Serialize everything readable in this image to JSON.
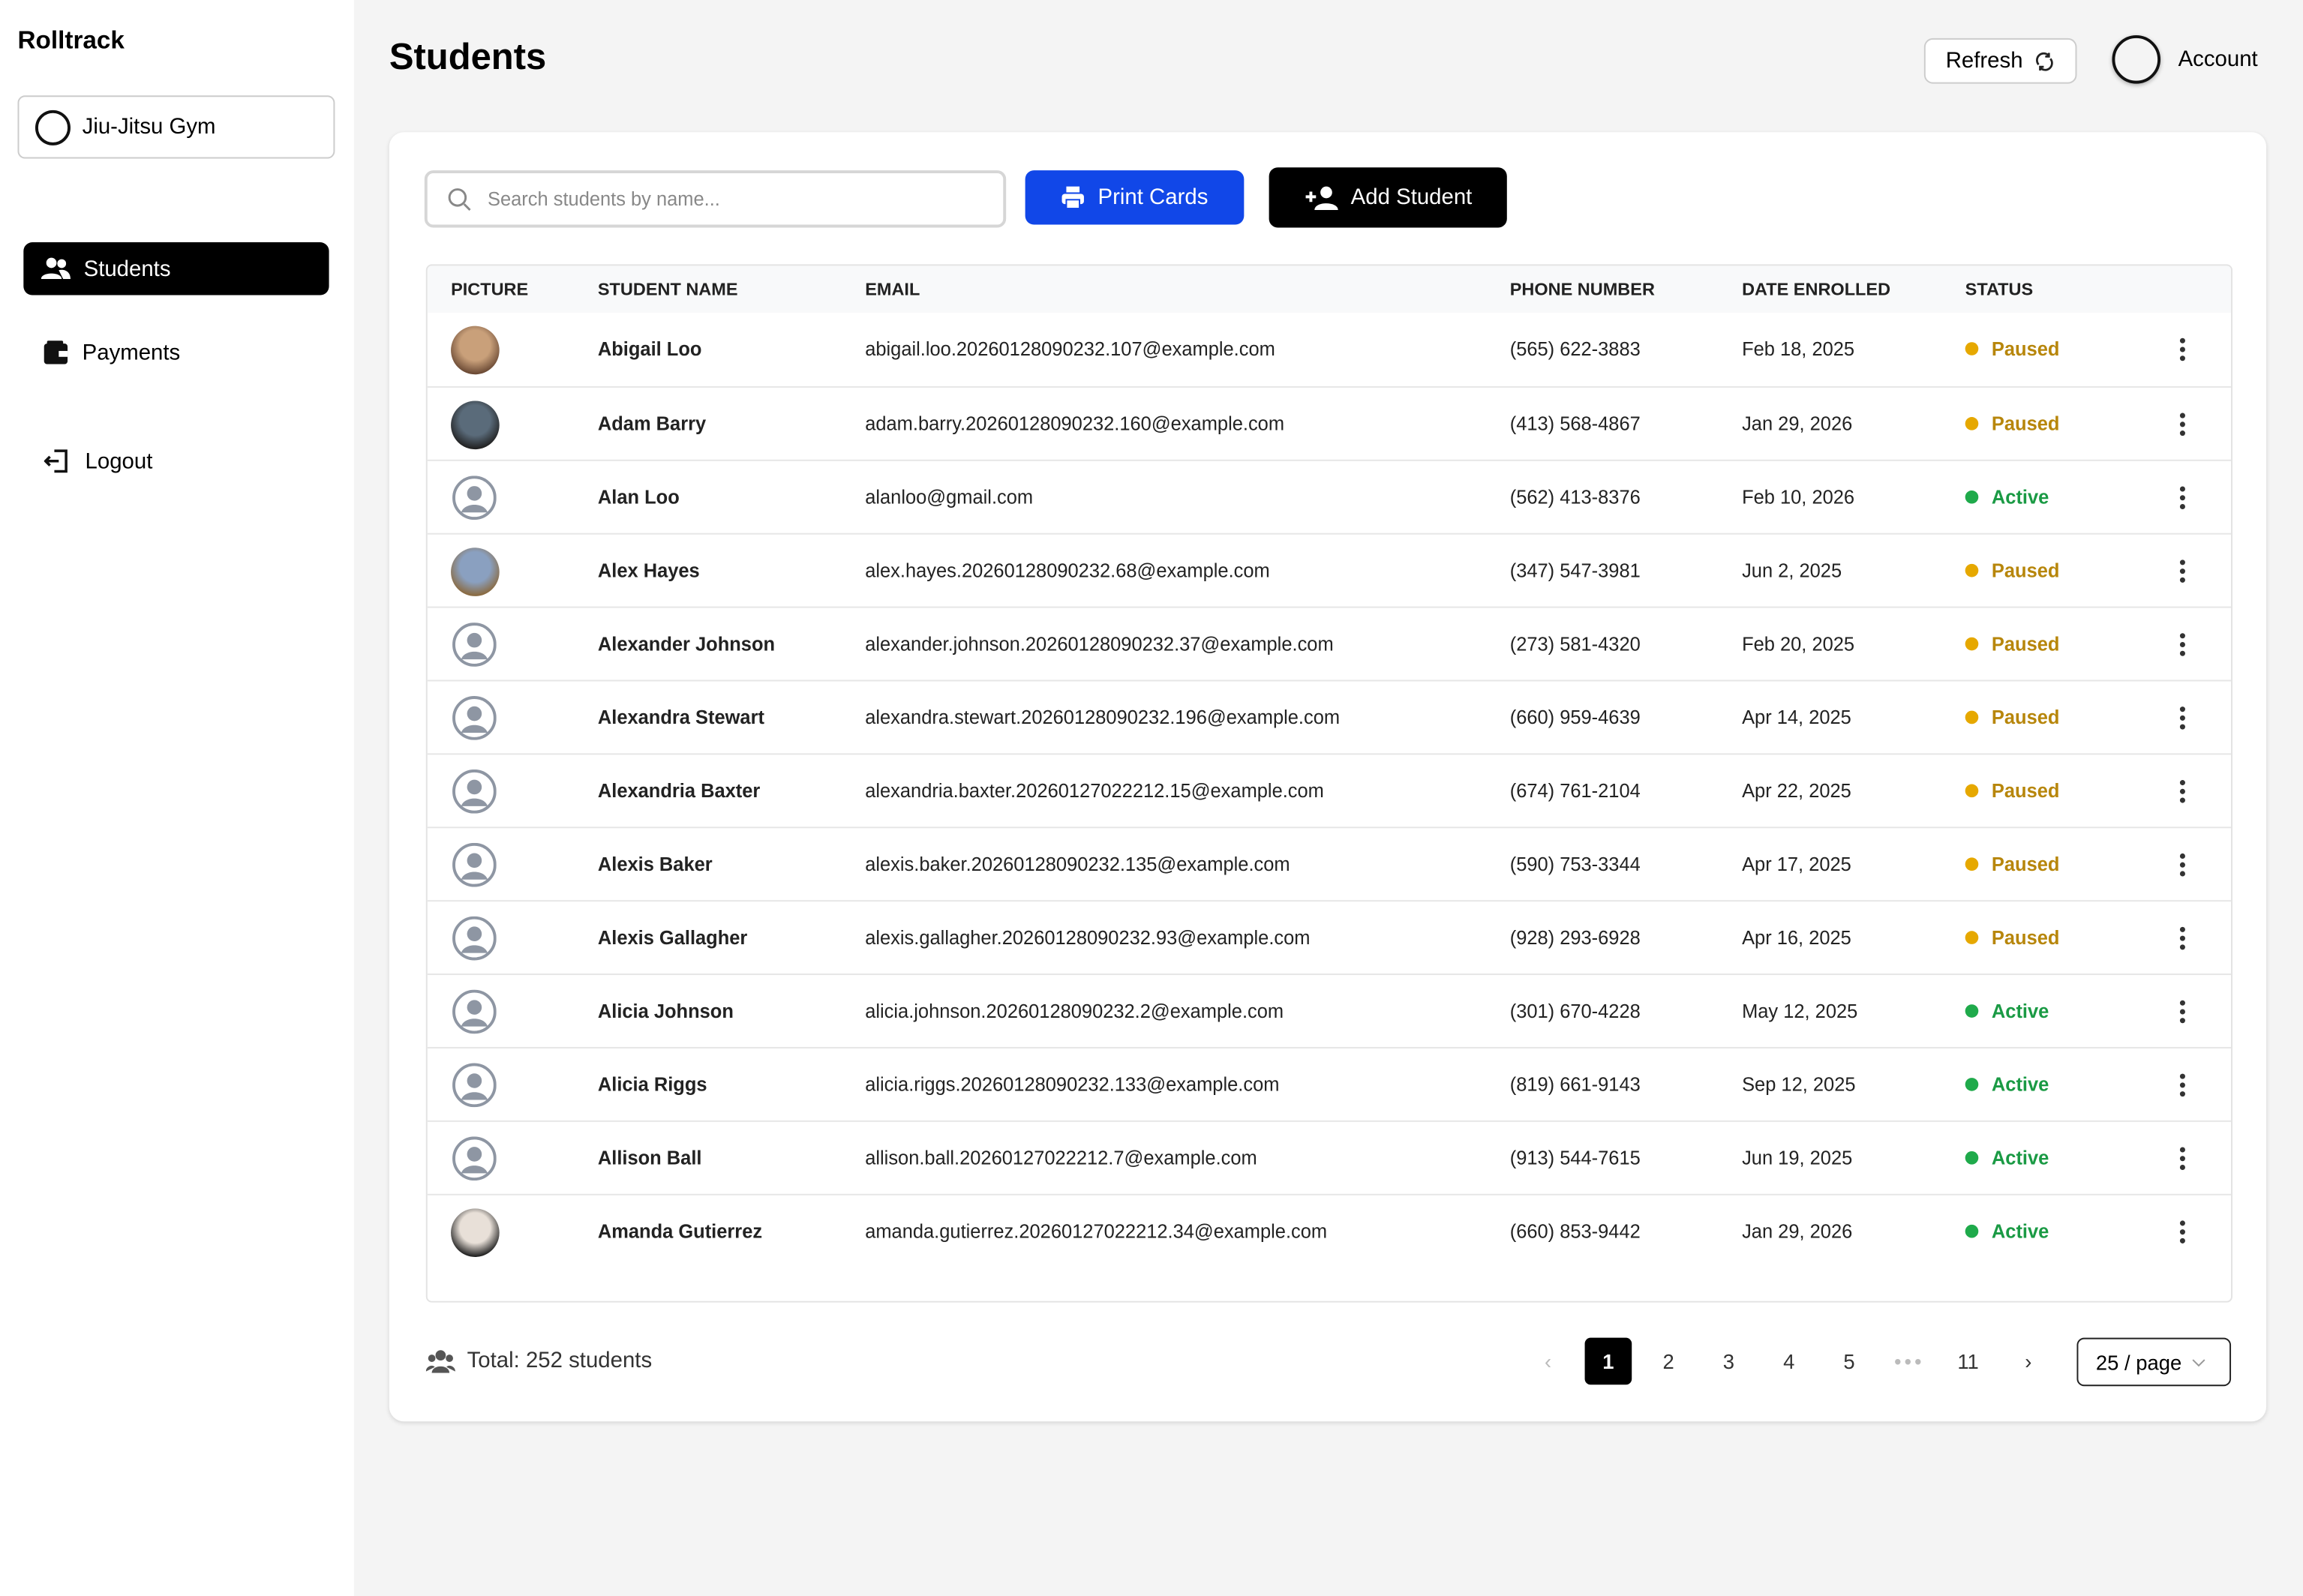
{
  "sidebar": {
    "brand": "Rolltrack",
    "workspace": "Jiu-Jitsu Gym",
    "nav": [
      "Students",
      "Payments",
      "Logout"
    ]
  },
  "header": {
    "title": "Students",
    "refresh": "Refresh",
    "account": "Account"
  },
  "toolbar": {
    "search_placeholder": "Search students by name...",
    "print": "Print Cards",
    "add": "Add Student"
  },
  "table": {
    "columns": [
      "PICTURE",
      "STUDENT NAME",
      "EMAIL",
      "PHONE NUMBER",
      "DATE ENROLLED",
      "STATUS"
    ],
    "rows": [
      [
        "Abigail Loo",
        "abigail.loo.20260128090232.107@example.com",
        "(565) 622-3883",
        "Feb 18, 2025",
        "Paused"
      ],
      [
        "Adam Barry",
        "adam.barry.20260128090232.160@example.com",
        "(413) 568-4867",
        "Jan 29, 2026",
        "Paused"
      ],
      [
        "Alan Loo",
        "alanloo@gmail.com",
        "(562) 413-8376",
        "Feb 10, 2026",
        "Active"
      ],
      [
        "Alex Hayes",
        "alex.hayes.20260128090232.68@example.com",
        "(347) 547-3981",
        "Jun 2, 2025",
        "Paused"
      ],
      [
        "Alexander Johnson",
        "alexander.johnson.20260128090232.37@example.com",
        "(273) 581-4320",
        "Feb 20, 2025",
        "Paused"
      ],
      [
        "Alexandra Stewart",
        "alexandra.stewart.20260128090232.196@example.com",
        "(660) 959-4639",
        "Apr 14, 2025",
        "Paused"
      ],
      [
        "Alexandria Baxter",
        "alexandria.baxter.20260127022212.15@example.com",
        "(674) 761-2104",
        "Apr 22, 2025",
        "Paused"
      ],
      [
        "Alexis Baker",
        "alexis.baker.20260128090232.135@example.com",
        "(590) 753-3344",
        "Apr 17, 2025",
        "Paused"
      ],
      [
        "Alexis Gallagher",
        "alexis.gallagher.20260128090232.93@example.com",
        "(928) 293-6928",
        "Apr 16, 2025",
        "Paused"
      ],
      [
        "Alicia Johnson",
        "alicia.johnson.20260128090232.2@example.com",
        "(301) 670-4228",
        "May 12, 2025",
        "Active"
      ],
      [
        "Alicia Riggs",
        "alicia.riggs.20260128090232.133@example.com",
        "(819) 661-9143",
        "Sep 12, 2025",
        "Active"
      ],
      [
        "Allison Ball",
        "allison.ball.20260127022212.7@example.com",
        "(913) 544-7615",
        "Jun 19, 2025",
        "Active"
      ],
      [
        "Amanda Gutierrez",
        "amanda.gutierrez.20260127022212.34@example.com",
        "(660) 853-9442",
        "Jan 29, 2026",
        "Active"
      ]
    ],
    "status_colors": {
      "Active": "#1faa4b",
      "Paused": "#e6a800"
    },
    "status_text_colors": {
      "Active": "#1a9a44",
      "Paused": "#b7860b"
    }
  },
  "footer": {
    "total": "Total: 252 students",
    "pages": [
      1,
      2,
      3,
      4,
      5,
      11
    ],
    "page_size": "25 / page"
  }
}
